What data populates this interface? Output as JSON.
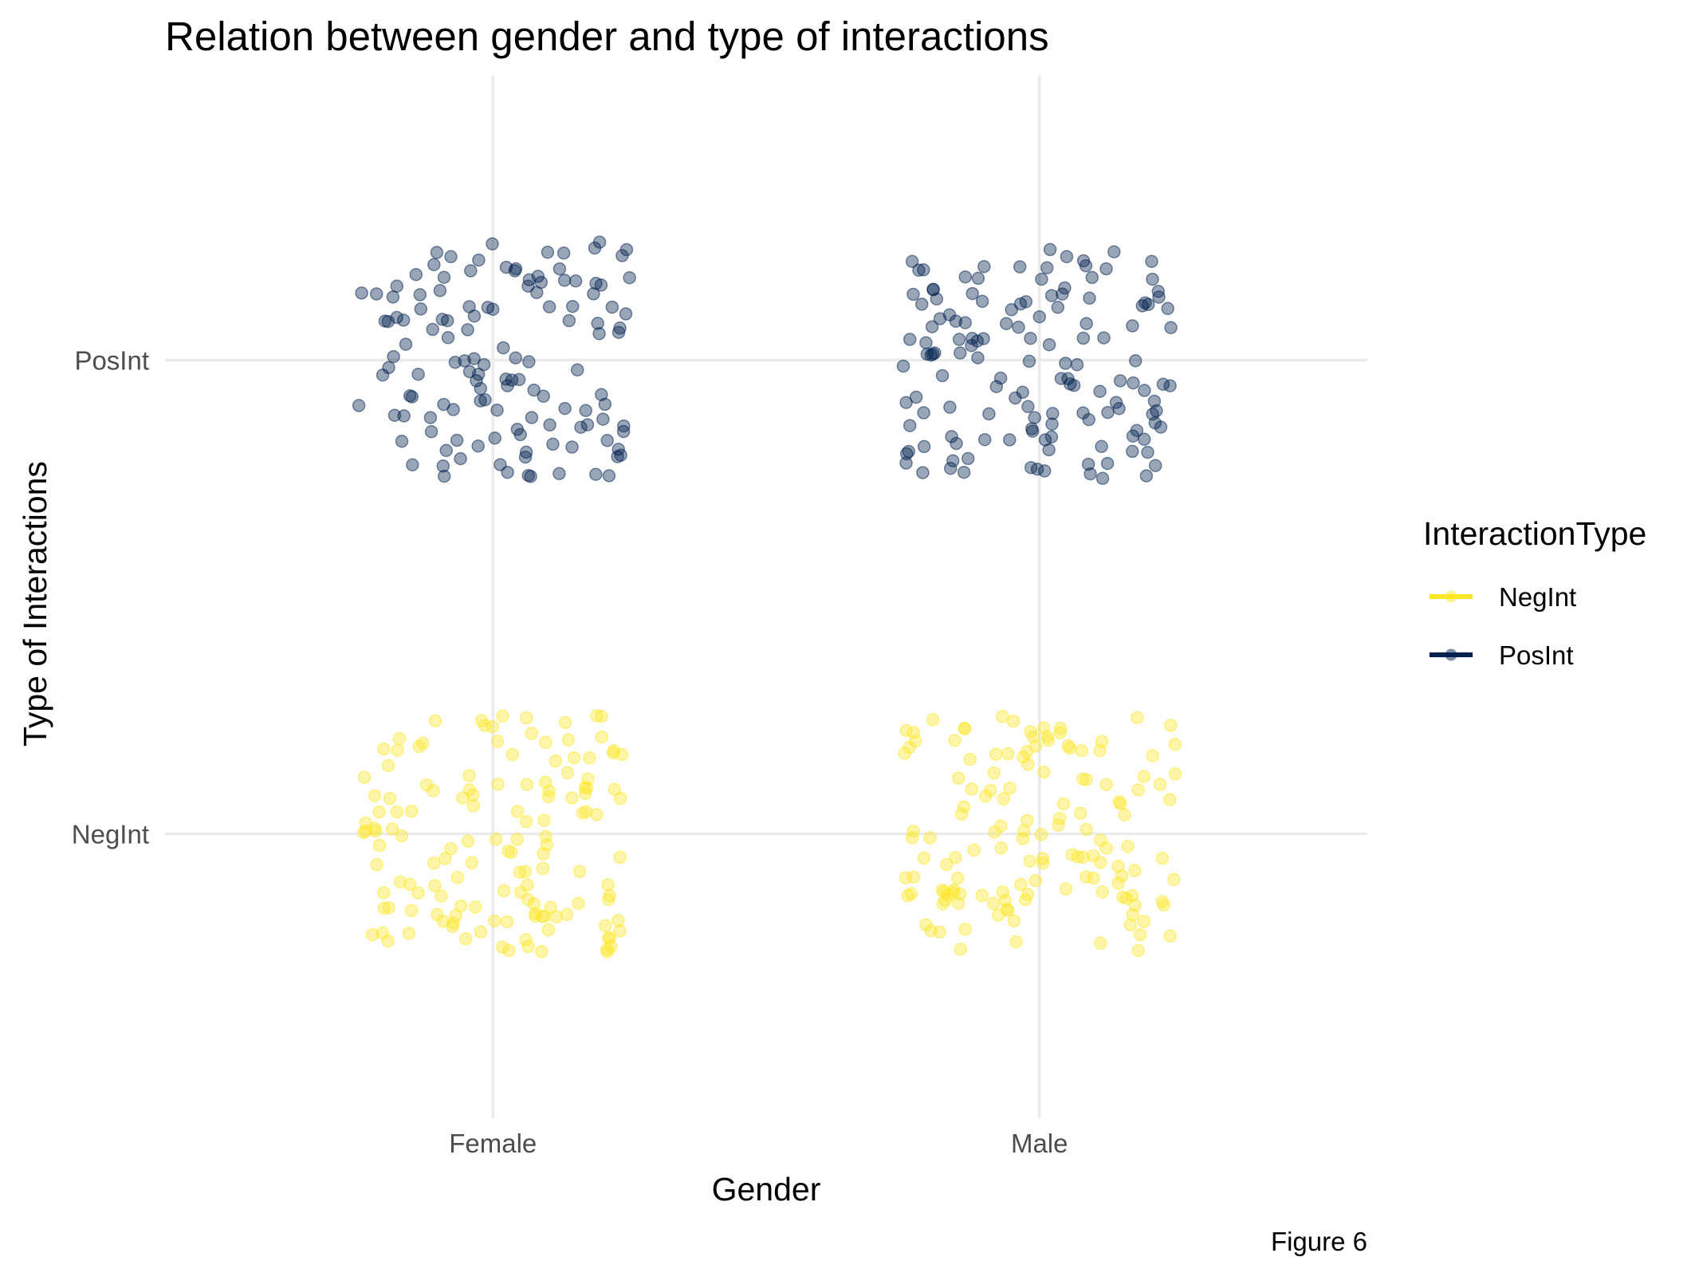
{
  "chart_data": {
    "type": "scatter",
    "title": "Relation between gender and type of interactions",
    "xlabel": "Gender",
    "ylabel": "Type of Interactions",
    "caption": "Figure 6",
    "categories_x": [
      "Female",
      "Male"
    ],
    "categories_y": [
      "NegInt",
      "PosInt"
    ],
    "jitter": {
      "x": 0.25,
      "y": 0.25
    },
    "grid": true,
    "legend": {
      "title": "InteractionType",
      "position": "right",
      "items": [
        {
          "label": "NegInt",
          "color": "#FDE725"
        },
        {
          "label": "PosInt",
          "color": "#00204D"
        }
      ]
    },
    "point_opacity": 0.4,
    "series": [
      {
        "name": "NegInt",
        "color": "#FDE725",
        "x_category": "Female",
        "y_category": "NegInt",
        "count": 140
      },
      {
        "name": "NegInt",
        "color": "#FDE725",
        "x_category": "Male",
        "y_category": "NegInt",
        "count": 140
      },
      {
        "name": "PosInt",
        "color": "#00204D",
        "x_category": "Female",
        "y_category": "PosInt",
        "count": 130
      },
      {
        "name": "PosInt",
        "color": "#00204D",
        "x_category": "Male",
        "y_category": "PosInt",
        "count": 140
      }
    ]
  }
}
